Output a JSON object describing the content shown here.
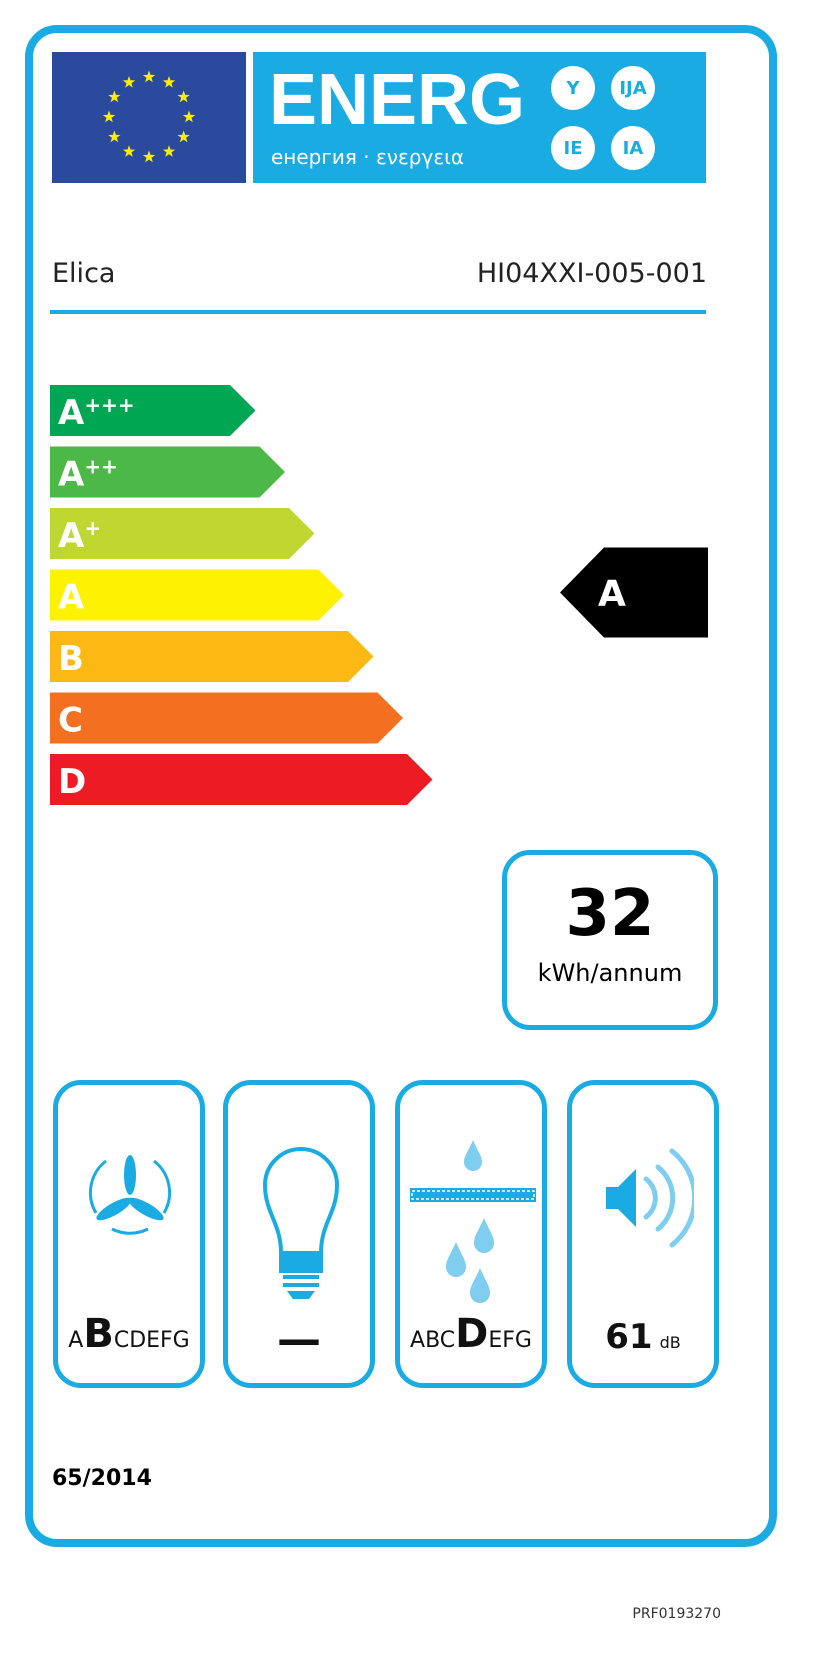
{
  "header": {
    "energy_title": "ENERG",
    "energy_subtitle": "енергия · ενεργεια",
    "suffixes": [
      "Y",
      "IJA",
      "IE",
      "IA"
    ]
  },
  "supplier": "Elica",
  "model": "HI04XXI-005-001",
  "classes": [
    {
      "label": "A",
      "sup": "+++",
      "color": "#00a651"
    },
    {
      "label": "A",
      "sup": "++",
      "color": "#4cb848"
    },
    {
      "label": "A",
      "sup": "+",
      "color": "#bfd730"
    },
    {
      "label": "A",
      "sup": "",
      "color": "#fff200"
    },
    {
      "label": "B",
      "sup": "",
      "color": "#fdb913"
    },
    {
      "label": "C",
      "sup": "",
      "color": "#f37021"
    },
    {
      "label": "D",
      "sup": "",
      "color": "#ed1c24"
    }
  ],
  "rating": {
    "class": "A",
    "color": "#000000"
  },
  "consumption": {
    "value": "32",
    "unit": "kWh/annum"
  },
  "fluid_dynamic": {
    "pre": "A",
    "selected": "B",
    "post": "CDEFG"
  },
  "lighting": {
    "value": "—"
  },
  "grease_filtering": {
    "pre": "ABC",
    "selected": "D",
    "post": "EFG"
  },
  "noise": {
    "value": "61",
    "unit": "dB"
  },
  "regulation": "65/2014",
  "code": "PRF0193270",
  "colors": {
    "accent": "#1aabe3",
    "eu_blue": "#2a4a9e",
    "star": "#ffed00"
  }
}
